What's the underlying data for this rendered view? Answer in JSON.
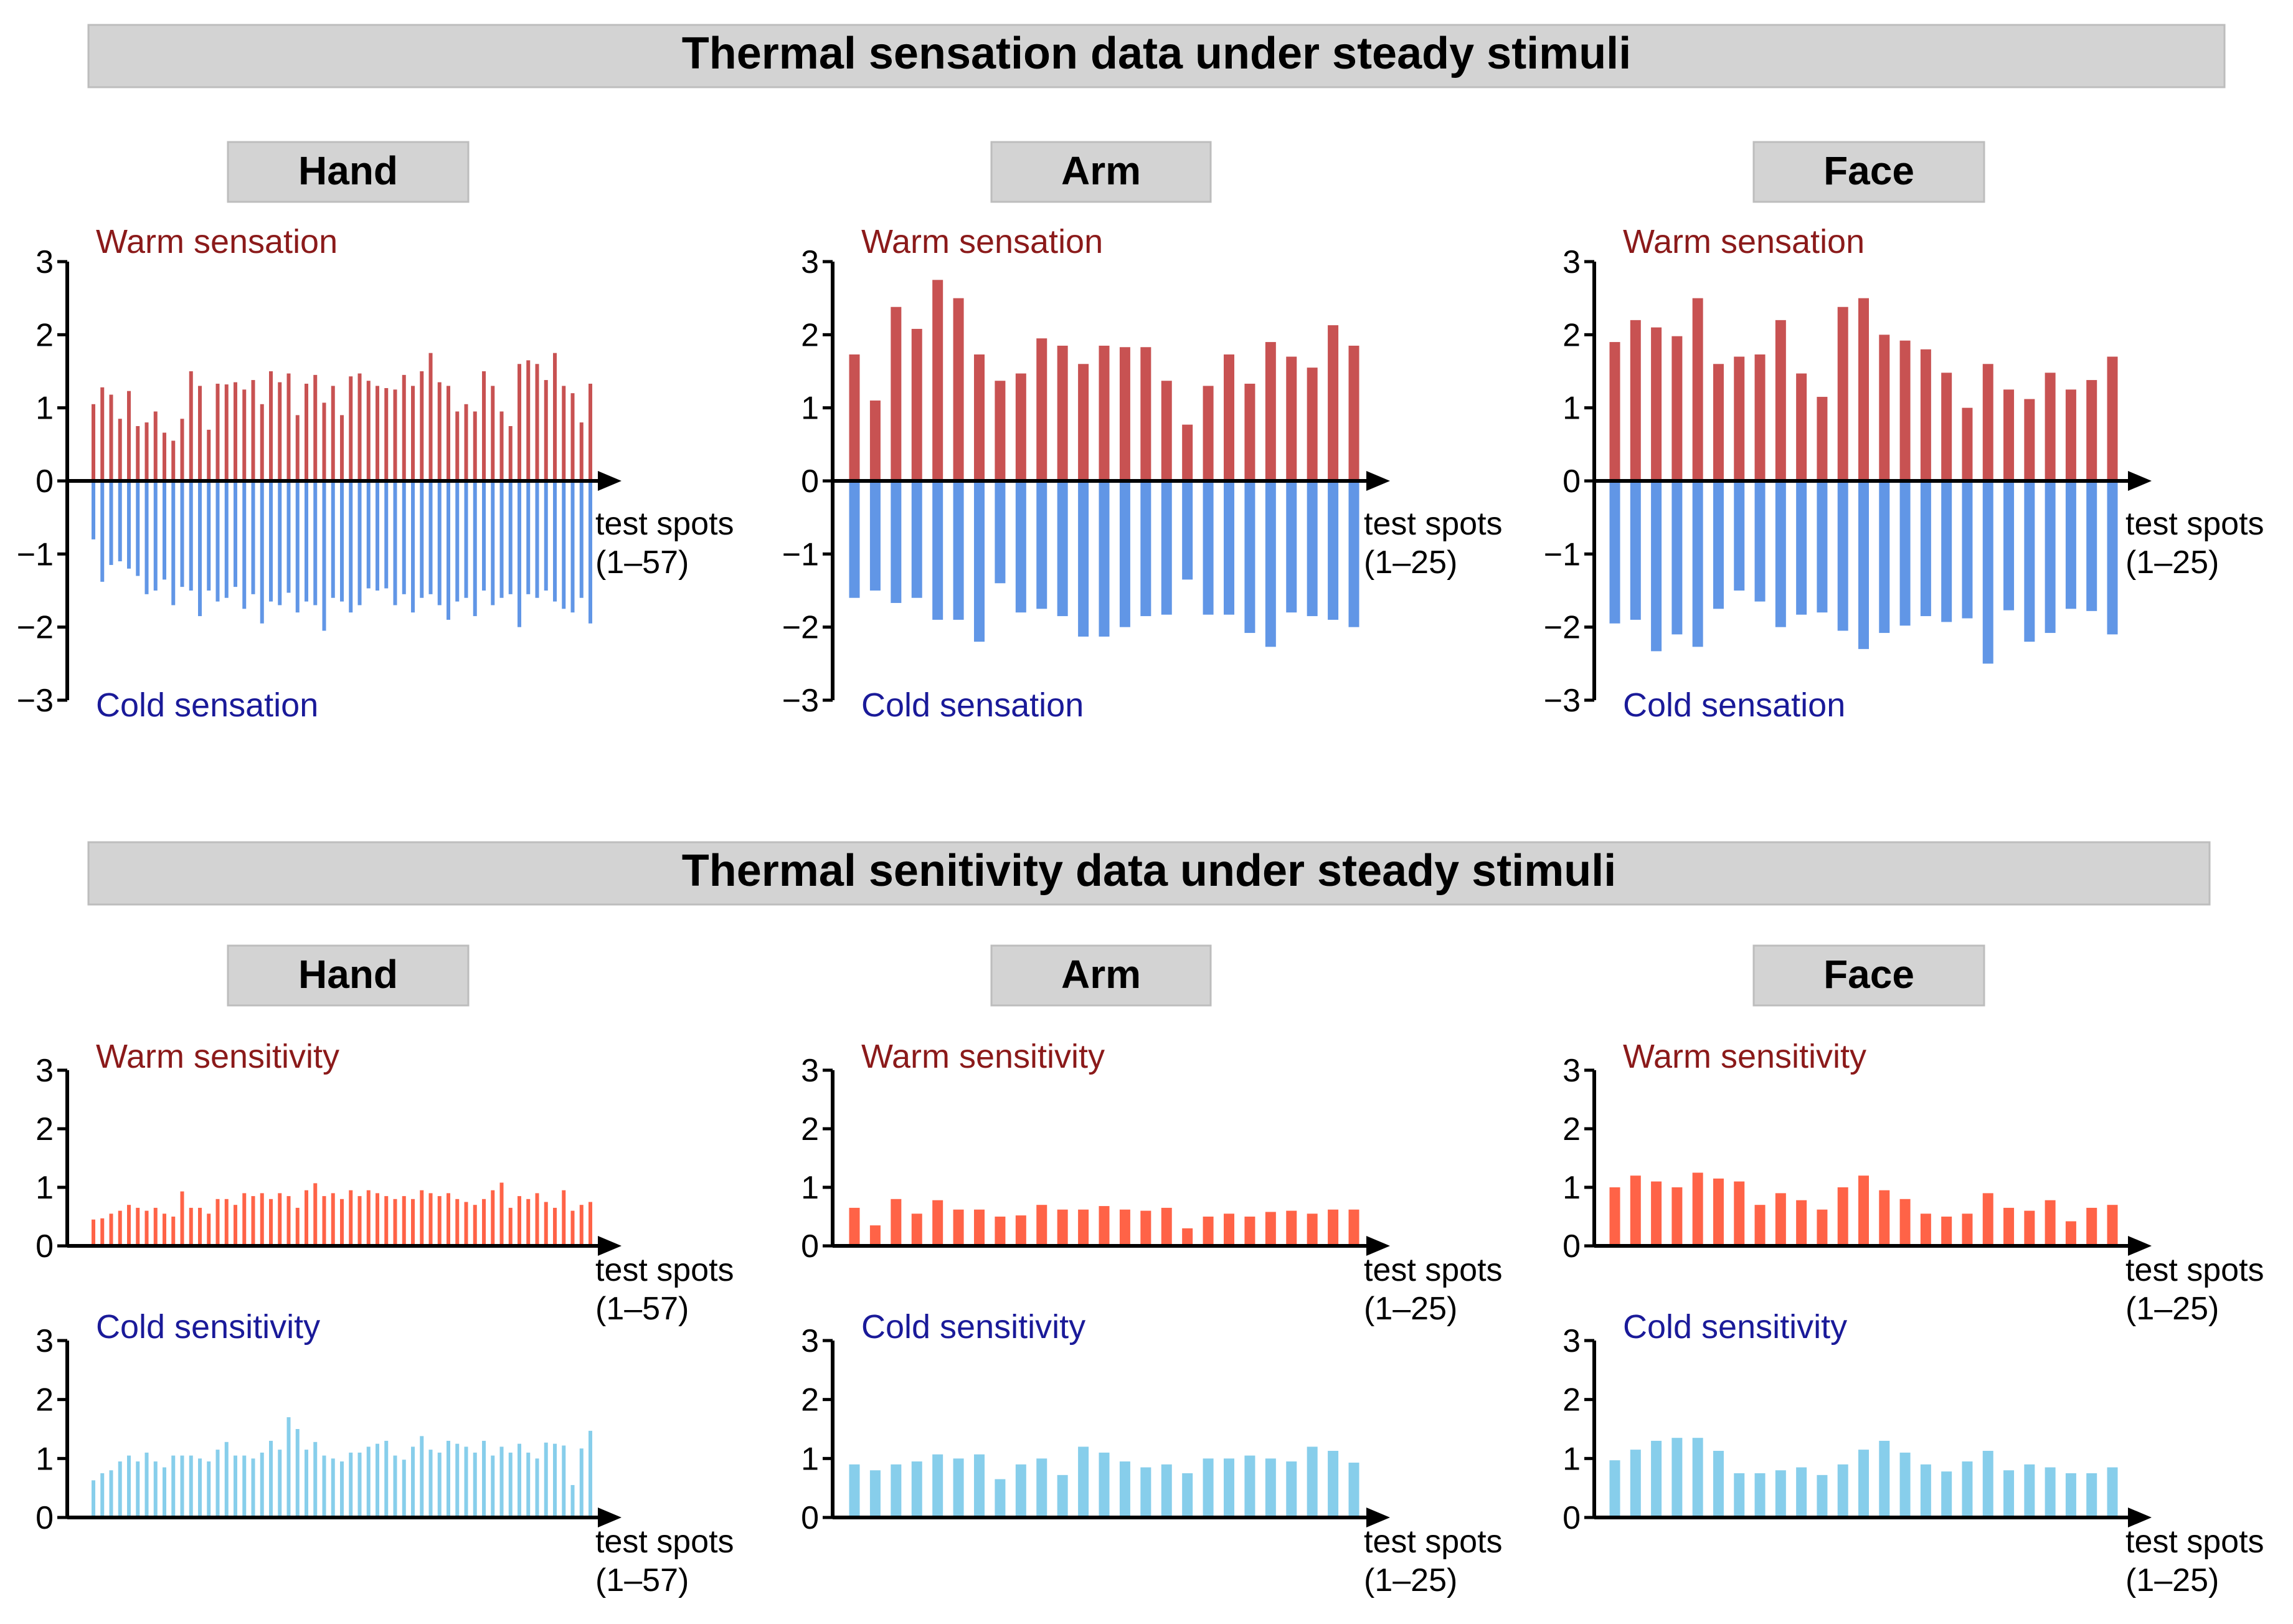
{
  "colors": {
    "warm_sensation": "#c85252",
    "cold_sensation": "#6196e6",
    "warm_sensitivity": "#ff6347",
    "cold_sensitivity": "#87ceeb",
    "warm_text": "#8b1a1a",
    "cold_text": "#1a1a99",
    "banner_fill": "#d3d3d3",
    "axis": "#000000"
  },
  "sections": {
    "sensation": {
      "title": "Thermal sensation data under steady stimuli"
    },
    "sensitivity": {
      "title": "Thermal senitivity data under steady stimuli"
    }
  },
  "regions": [
    {
      "label": "Hand"
    },
    {
      "label": "Arm"
    },
    {
      "label": "Face"
    },
    {
      "label": "Hand"
    },
    {
      "label": "Arm"
    },
    {
      "label": "Face"
    }
  ],
  "chart_data": [
    {
      "type": "bar",
      "region": "Hand",
      "measure": "sensation",
      "warm_label": "Warm sensation",
      "cold_label": "Cold sensation",
      "xlabel": [
        "test spots",
        "(1–57)"
      ],
      "yticks": [
        "−3",
        "−2",
        "−1",
        "0",
        "1",
        "2",
        "3"
      ],
      "ylim": [
        -3,
        3
      ],
      "warm": [
        1.05,
        1.28,
        1.18,
        0.85,
        1.23,
        0.75,
        0.8,
        0.95,
        0.66,
        0.55,
        0.85,
        1.5,
        1.3,
        0.7,
        1.33,
        1.32,
        1.35,
        1.25,
        1.38,
        1.05,
        1.5,
        1.35,
        1.47,
        0.9,
        1.33,
        1.45,
        1.07,
        1.3,
        0.9,
        1.43,
        1.47,
        1.37,
        1.3,
        1.27,
        1.25,
        1.45,
        1.3,
        1.5,
        1.75,
        1.35,
        1.3,
        0.95,
        1.05,
        0.95,
        1.5,
        1.3,
        0.95,
        0.75,
        1.6,
        1.65,
        1.6,
        1.38,
        1.75,
        1.3,
        1.2,
        0.8,
        1.33
      ],
      "cold": [
        0.8,
        1.38,
        1.15,
        1.1,
        1.2,
        1.3,
        1.55,
        1.5,
        1.35,
        1.7,
        1.45,
        1.5,
        1.85,
        1.5,
        1.65,
        1.6,
        1.45,
        1.75,
        1.55,
        1.95,
        1.65,
        1.7,
        1.53,
        1.8,
        1.65,
        1.7,
        2.05,
        1.6,
        1.65,
        1.8,
        1.7,
        1.47,
        1.5,
        1.47,
        1.7,
        1.55,
        1.8,
        1.6,
        1.55,
        1.7,
        1.9,
        1.65,
        1.6,
        1.85,
        1.5,
        1.7,
        1.6,
        1.55,
        2.0,
        1.55,
        1.6,
        1.5,
        1.65,
        1.75,
        1.8,
        1.6,
        1.95
      ]
    },
    {
      "type": "bar",
      "region": "Arm",
      "measure": "sensation",
      "warm_label": "Warm sensation",
      "cold_label": "Cold sensation",
      "xlabel": [
        "test spots",
        "(1–25)"
      ],
      "yticks": [
        "−3",
        "−2",
        "−1",
        "0",
        "1",
        "2",
        "3"
      ],
      "ylim": [
        -3,
        3
      ],
      "warm": [
        1.73,
        1.1,
        2.38,
        2.08,
        2.75,
        2.5,
        1.73,
        1.37,
        1.47,
        1.95,
        1.85,
        1.6,
        1.85,
        1.83,
        1.83,
        1.37,
        0.77,
        1.3,
        1.73,
        1.33,
        1.9,
        1.7,
        1.55,
        2.13,
        1.85
      ],
      "cold": [
        1.6,
        1.5,
        1.67,
        1.6,
        1.9,
        1.9,
        2.2,
        1.4,
        1.8,
        1.75,
        1.85,
        2.13,
        2.13,
        2.0,
        1.85,
        1.83,
        1.35,
        1.83,
        1.83,
        2.08,
        2.27,
        1.8,
        1.85,
        1.9,
        2.0
      ]
    },
    {
      "type": "bar",
      "region": "Face",
      "measure": "sensation",
      "warm_label": "Warm sensation",
      "cold_label": "Cold sensation",
      "xlabel": [
        "test spots",
        "(1–25)"
      ],
      "yticks": [
        "−3",
        "−2",
        "−1",
        "0",
        "1",
        "2",
        "3"
      ],
      "ylim": [
        -3,
        3
      ],
      "warm": [
        1.9,
        2.2,
        2.1,
        1.98,
        2.5,
        1.6,
        1.7,
        1.73,
        2.2,
        1.47,
        1.15,
        2.38,
        2.5,
        2.0,
        1.92,
        1.8,
        1.48,
        1.0,
        1.6,
        1.25,
        1.12,
        1.48,
        1.25,
        1.38,
        1.7
      ],
      "cold": [
        1.95,
        1.9,
        2.33,
        2.1,
        2.27,
        1.75,
        1.5,
        1.65,
        2.0,
        1.83,
        1.8,
        2.05,
        2.3,
        2.08,
        1.98,
        1.85,
        1.93,
        1.88,
        2.5,
        1.77,
        2.2,
        2.08,
        1.75,
        1.78,
        2.1
      ]
    },
    {
      "type": "bar",
      "region": "Hand",
      "measure": "sensitivity",
      "warm_label": "Warm sensitivity",
      "cold_label": "Cold sensitivity",
      "xlabel": [
        "test spots",
        "(1–57)"
      ],
      "yticks": [
        "0",
        "1",
        "2",
        "3"
      ],
      "ylim": [
        0,
        3
      ],
      "warm": [
        0.45,
        0.47,
        0.55,
        0.6,
        0.7,
        0.65,
        0.6,
        0.65,
        0.55,
        0.5,
        0.93,
        0.65,
        0.65,
        0.55,
        0.8,
        0.8,
        0.7,
        0.9,
        0.85,
        0.9,
        0.8,
        0.9,
        0.85,
        0.65,
        0.95,
        1.07,
        0.85,
        0.9,
        0.8,
        0.95,
        0.85,
        0.95,
        0.9,
        0.85,
        0.8,
        0.85,
        0.8,
        0.95,
        0.9,
        0.85,
        0.9,
        0.8,
        0.75,
        0.7,
        0.8,
        0.95,
        1.08,
        0.65,
        0.85,
        0.8,
        0.9,
        0.75,
        0.65,
        0.95,
        0.6,
        0.7,
        0.75
      ]
    },
    {
      "type": "bar",
      "region": "Hand",
      "measure": "sensitivity",
      "warm_label": "Warm sensitivity",
      "cold_label": "Cold sensitivity",
      "xlabel": [
        "test spots",
        "(1–57)"
      ],
      "yticks": [
        "0",
        "1",
        "2",
        "3"
      ],
      "ylim": [
        0,
        3
      ],
      "cold": [
        0.63,
        0.75,
        0.8,
        0.95,
        1.05,
        0.95,
        1.1,
        0.95,
        0.85,
        1.05,
        1.05,
        1.05,
        1.0,
        0.95,
        1.15,
        1.28,
        1.05,
        1.05,
        1.0,
        1.1,
        1.3,
        1.15,
        1.7,
        1.5,
        1.15,
        1.28,
        1.05,
        1.0,
        0.95,
        1.1,
        1.1,
        1.2,
        1.25,
        1.3,
        1.05,
        0.98,
        1.2,
        1.38,
        1.15,
        1.1,
        1.3,
        1.25,
        1.2,
        1.1,
        1.3,
        1.05,
        1.2,
        1.1,
        1.25,
        1.1,
        1.0,
        1.27,
        1.25,
        1.22,
        0.55,
        1.17,
        1.47
      ]
    },
    {
      "type": "bar",
      "region": "Arm",
      "measure": "sensitivity",
      "warm_label": "Warm sensitivity",
      "cold_label": "Cold sensitivity",
      "xlabel": [
        "test spots",
        "(1–25)"
      ],
      "yticks": [
        "0",
        "1",
        "2",
        "3"
      ],
      "ylim": [
        0,
        3
      ],
      "warm": [
        0.65,
        0.35,
        0.8,
        0.55,
        0.78,
        0.62,
        0.62,
        0.5,
        0.52,
        0.7,
        0.62,
        0.62,
        0.68,
        0.62,
        0.6,
        0.65,
        0.3,
        0.5,
        0.55,
        0.5,
        0.58,
        0.6,
        0.55,
        0.62,
        0.62
      ]
    },
    {
      "type": "bar",
      "region": "Arm",
      "measure": "sensitivity",
      "warm_label": "Warm sensitivity",
      "cold_label": "Cold sensitivity",
      "xlabel": [
        "test spots",
        "(1–25)"
      ],
      "yticks": [
        "0",
        "1",
        "2",
        "3"
      ],
      "ylim": [
        0,
        3
      ],
      "cold": [
        0.9,
        0.8,
        0.9,
        0.95,
        1.07,
        1.0,
        1.07,
        0.65,
        0.9,
        1.0,
        0.72,
        1.2,
        1.1,
        0.95,
        0.85,
        0.9,
        0.75,
        1.0,
        1.0,
        1.05,
        1.0,
        0.95,
        1.2,
        1.13,
        0.93
      ]
    },
    {
      "type": "bar",
      "region": "Face",
      "measure": "sensitivity",
      "warm_label": "Warm sensitivity",
      "cold_label": "Cold sensitivity",
      "xlabel": [
        "test spots",
        "(1–25)"
      ],
      "yticks": [
        "0",
        "1",
        "2",
        "3"
      ],
      "ylim": [
        0,
        3
      ],
      "warm": [
        1.0,
        1.2,
        1.1,
        1.0,
        1.25,
        1.15,
        1.1,
        0.7,
        0.9,
        0.78,
        0.62,
        1.0,
        1.2,
        0.95,
        0.8,
        0.55,
        0.5,
        0.55,
        0.9,
        0.65,
        0.6,
        0.78,
        0.42,
        0.65,
        0.7
      ]
    },
    {
      "type": "bar",
      "region": "Face",
      "measure": "sensitivity",
      "warm_label": "Warm sensitivity",
      "cold_label": "Cold sensitivity",
      "xlabel": [
        "test spots",
        "(1–25)"
      ],
      "yticks": [
        "0",
        "1",
        "2",
        "3"
      ],
      "ylim": [
        0,
        3
      ],
      "cold": [
        0.97,
        1.15,
        1.3,
        1.35,
        1.35,
        1.13,
        0.75,
        0.75,
        0.8,
        0.85,
        0.72,
        0.9,
        1.15,
        1.3,
        1.1,
        0.9,
        0.78,
        0.95,
        1.13,
        0.8,
        0.9,
        0.85,
        0.75,
        0.75,
        0.85
      ]
    }
  ]
}
